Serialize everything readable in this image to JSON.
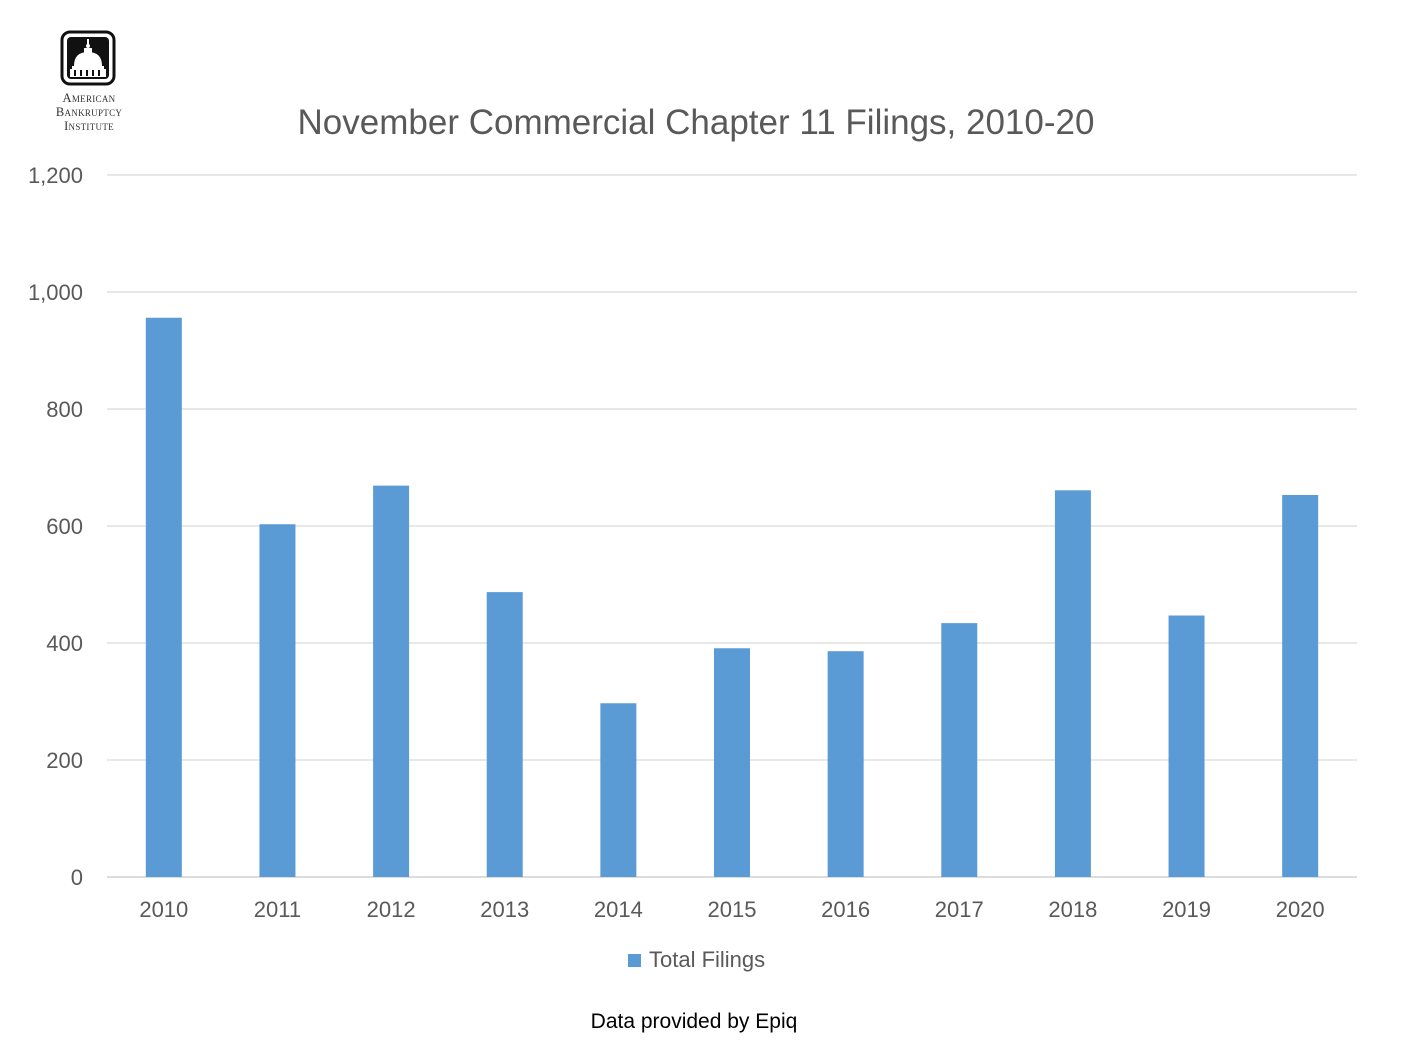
{
  "logo": {
    "icon": "capitol-dome-icon",
    "lines": [
      "American",
      "Bankruptcy",
      "Institute"
    ]
  },
  "chart_data": {
    "type": "bar",
    "title": "November Commercial Chapter 11 Filings, 2010-20",
    "categories": [
      "2010",
      "2011",
      "2012",
      "2013",
      "2014",
      "2015",
      "2016",
      "2017",
      "2018",
      "2019",
      "2020"
    ],
    "series": [
      {
        "name": "Total Filings",
        "values": [
          956,
          603,
          669,
          487,
          297,
          391,
          386,
          434,
          661,
          447,
          653
        ],
        "color": "#5B9BD5"
      }
    ],
    "ylim": [
      0,
      1200
    ],
    "yticks": [
      0,
      200,
      400,
      600,
      800,
      1000,
      1200
    ],
    "ytick_labels": [
      "0",
      "200",
      "400",
      "600",
      "800",
      "1,000",
      "1,200"
    ],
    "grid": true,
    "legend": "bottom-center",
    "xlabel": "",
    "ylabel": ""
  },
  "footer": "Data provided by Epiq"
}
